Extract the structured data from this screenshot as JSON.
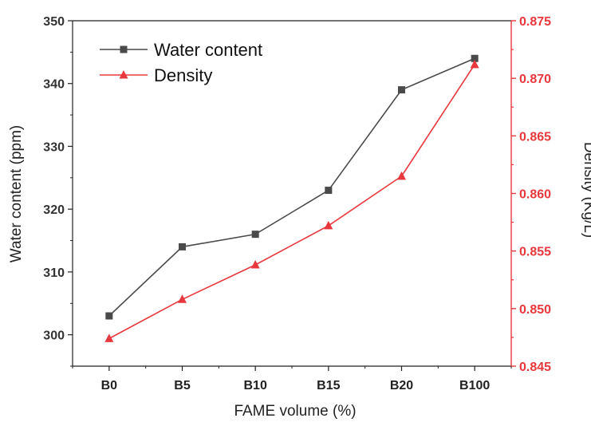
{
  "chart_data": {
    "type": "line",
    "categories": [
      "B0",
      "B5",
      "B10",
      "B15",
      "B20",
      "B100"
    ],
    "xlabel": "FAME volume (%)",
    "series": [
      {
        "name": "Water content",
        "axis": "left",
        "marker": "square",
        "color": "#4a4a4a",
        "values": [
          303,
          314,
          316,
          323,
          339,
          344
        ]
      },
      {
        "name": "Density",
        "axis": "right",
        "marker": "triangle",
        "color": "#e8383d",
        "values": [
          0.8474,
          0.8508,
          0.8538,
          0.8572,
          0.8615,
          0.8712
        ]
      }
    ],
    "y_left": {
      "label": "Water content (ppm)",
      "ylim": [
        295,
        350
      ],
      "ticks": [
        "300",
        "310",
        "320",
        "330",
        "340",
        "350"
      ],
      "color": "#333333"
    },
    "y_right": {
      "label": "Density (Kg/L)",
      "ylim": [
        0.845,
        0.875
      ],
      "ticks": [
        "0.845",
        "0.850",
        "0.855",
        "0.860",
        "0.865",
        "0.870",
        "0.875"
      ],
      "color": "#e8383d"
    },
    "legend_position": "top-left",
    "grid": false
  }
}
